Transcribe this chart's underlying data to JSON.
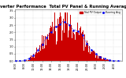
{
  "title": "Solar PV/Inverter Performance  Total PV Panel & Running Average Power Output",
  "title_fontsize": 3.8,
  "bg_color": "#ffffff",
  "plot_bg_color": "#ffffff",
  "grid_color": "#bbbbbb",
  "bar_color": "#cc0000",
  "line_color": "#0000ee",
  "ylim": [
    0,
    3.6
  ],
  "n_bars": 144,
  "legend_entries": [
    "Total PV Output",
    "Running Avg"
  ],
  "legend_colors": [
    "#cc0000",
    "#0000ee"
  ]
}
